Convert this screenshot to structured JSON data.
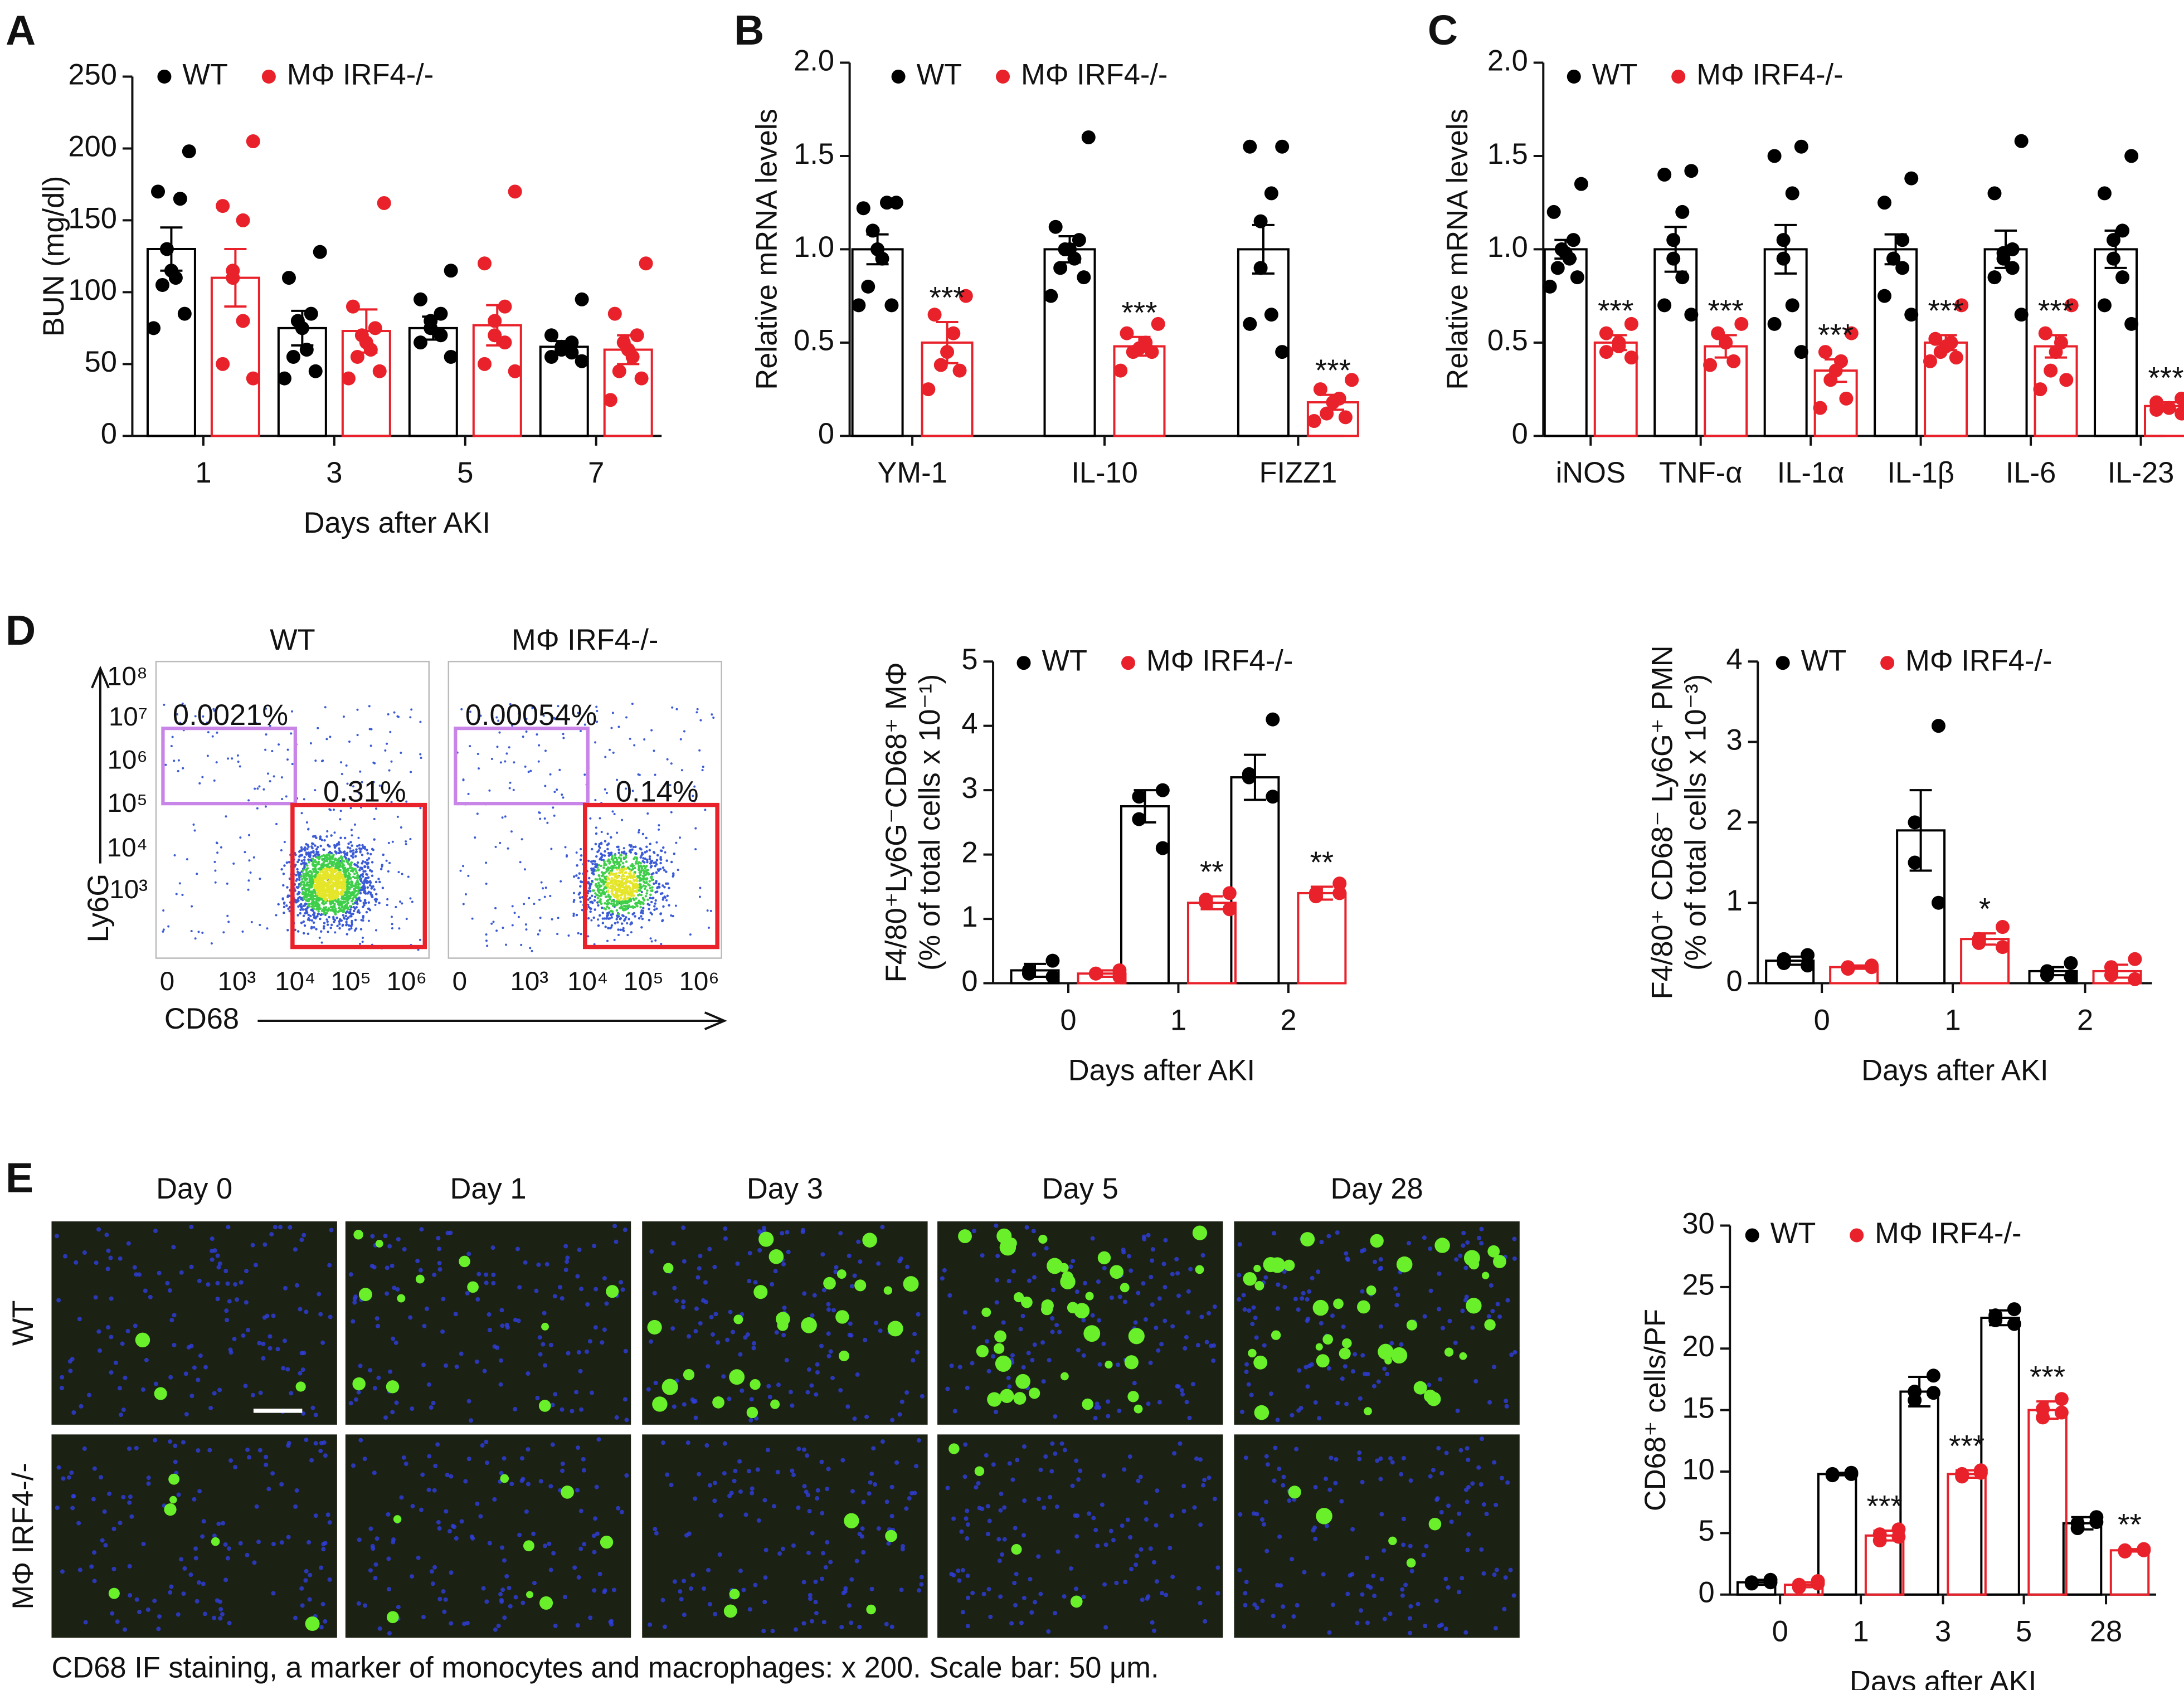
{
  "panels": [
    "A",
    "B",
    "C",
    "D",
    "E"
  ],
  "chart_data": [
    {
      "type": "bar",
      "ylabel": "BUN (mg/dl)",
      "xlabel": "Days after AKI",
      "categories": [
        "1",
        "3",
        "5",
        "7"
      ],
      "ylim": [
        0,
        250
      ],
      "yticks": [
        0,
        50,
        100,
        150,
        200,
        250
      ],
      "series": [
        {
          "name": "WT",
          "color": "#000000",
          "values": [
            130,
            75,
            75,
            62
          ],
          "errors": [
            15,
            12,
            8,
            4
          ],
          "points": [
            [
              198,
              170,
              165,
              130,
              115,
              110,
              105,
              85,
              75
            ],
            [
              128,
              110,
              85,
              80,
              75,
              60,
              55,
              45,
              40
            ],
            [
              115,
              95,
              85,
              80,
              75,
              70,
              65,
              55
            ],
            [
              95,
              70,
              65,
              62,
              60,
              58,
              55,
              52
            ]
          ],
          "annotations": [
            null,
            null,
            null,
            null
          ]
        },
        {
          "name": "MΦ IRF4-/-",
          "color": "#e8212a",
          "values": [
            110,
            73,
            77,
            60
          ],
          "errors": [
            20,
            15,
            14,
            10
          ],
          "points": [
            [
              205,
              160,
              150,
              115,
              110,
              80,
              50,
              40
            ],
            [
              162,
              90,
              75,
              70,
              65,
              60,
              55,
              45,
              40
            ],
            [
              170,
              120,
              90,
              80,
              70,
              65,
              50,
              45
            ],
            [
              120,
              85,
              70,
              65,
              60,
              55,
              45,
              40,
              25
            ]
          ],
          "annotations": [
            null,
            null,
            null,
            null
          ]
        }
      ]
    },
    {
      "type": "bar",
      "ylabel": "Relative mRNA levels",
      "categories": [
        "YM-1",
        "IL-10",
        "FIZZ1"
      ],
      "ylim": [
        0,
        2
      ],
      "yticks": [
        0,
        0.5,
        {
          "value": 1,
          "label": "1.0"
        },
        1.5,
        {
          "value": 2,
          "label": "2.0"
        }
      ],
      "series": [
        {
          "name": "WT",
          "color": "#000000",
          "values": [
            1.0,
            1.0,
            1.0
          ],
          "errors": [
            0.08,
            0.07,
            0.13
          ],
          "points": [
            [
              1.25,
              1.22,
              1.25,
              1.1,
              1.0,
              0.95,
              0.8,
              0.7,
              0.7
            ],
            [
              1.6,
              1.12,
              1.05,
              1.0,
              1.0,
              0.95,
              0.9,
              0.85,
              0.75
            ],
            [
              1.55,
              1.55,
              1.3,
              1.15,
              0.9,
              0.65,
              0.6,
              0.45
            ]
          ],
          "annotations": [
            null,
            null,
            null
          ]
        },
        {
          "name": "MΦ IRF4-/-",
          "color": "#e8212a",
          "values": [
            0.5,
            0.48,
            0.18
          ],
          "errors": [
            0.11,
            0.05,
            0.04
          ],
          "points": [
            [
              0.75,
              0.65,
              0.55,
              0.45,
              0.38,
              0.35,
              0.25
            ],
            [
              0.6,
              0.55,
              0.5,
              0.47,
              0.45,
              0.45,
              0.35
            ],
            [
              0.3,
              0.25,
              0.2,
              0.18,
              0.12,
              0.1,
              0.08
            ]
          ],
          "annotations": [
            "***",
            "***",
            "***"
          ]
        }
      ]
    },
    {
      "type": "bar",
      "ylabel": "Relative mRNA levels",
      "categories": [
        "iNOS",
        "TNF-α",
        "IL-1α",
        "IL-1β",
        "IL-6",
        "IL-23"
      ],
      "ylim": [
        0,
        2
      ],
      "yticks": [
        0,
        0.5,
        {
          "value": 1,
          "label": "1.0"
        },
        1.5,
        {
          "value": 2,
          "label": "2.0"
        }
      ],
      "series": [
        {
          "name": "WT",
          "color": "#000000",
          "values": [
            1.0,
            1.0,
            1.0,
            1.0,
            1.0,
            1.0
          ],
          "errors": [
            0.05,
            0.12,
            0.13,
            0.08,
            0.1,
            0.1
          ],
          "points": [
            [
              1.35,
              1.2,
              1.05,
              1.0,
              0.98,
              0.95,
              0.9,
              0.85,
              0.8
            ],
            [
              1.42,
              1.4,
              1.2,
              1.05,
              0.95,
              0.85,
              0.7,
              0.65
            ],
            [
              1.55,
              1.5,
              1.3,
              1.05,
              0.95,
              0.7,
              0.6,
              0.45
            ],
            [
              1.38,
              1.25,
              1.05,
              0.95,
              0.95,
              0.9,
              0.75,
              0.65
            ],
            [
              1.58,
              1.3,
              1.0,
              0.98,
              0.95,
              0.9,
              0.85,
              0.65
            ],
            [
              1.5,
              1.3,
              1.1,
              1.05,
              0.95,
              0.85,
              0.7,
              0.6
            ]
          ],
          "annotations": [
            null,
            null,
            null,
            null,
            null,
            null
          ]
        },
        {
          "name": "MΦ IRF4-/-",
          "color": "#e8212a",
          "values": [
            0.5,
            0.48,
            0.35,
            0.5,
            0.48,
            0.16
          ],
          "errors": [
            0.04,
            0.06,
            0.06,
            0.04,
            0.06,
            0.02
          ],
          "points": [
            [
              0.6,
              0.55,
              0.5,
              0.48,
              0.45,
              0.42
            ],
            [
              0.6,
              0.55,
              0.5,
              0.4,
              0.38
            ],
            [
              0.55,
              0.45,
              0.4,
              0.35,
              0.3,
              0.2,
              0.15
            ],
            [
              0.7,
              0.52,
              0.5,
              0.48,
              0.45,
              0.42,
              0.4
            ],
            [
              0.7,
              0.55,
              0.5,
              0.45,
              0.35,
              0.3,
              0.25
            ],
            [
              0.2,
              0.18,
              0.15,
              0.15,
              0.14,
              0.12
            ]
          ],
          "annotations": [
            "***",
            "***",
            "***",
            "***",
            "***",
            "***"
          ]
        }
      ]
    },
    {
      "type": "bar",
      "ylabel": [
        "F4/80⁺Ly6G⁻CD68⁺ MΦ",
        "(% of total cells x 10⁻¹)"
      ],
      "xlabel": "Days after AKI",
      "categories": [
        "0",
        "1",
        "2"
      ],
      "ylim": [
        0,
        5
      ],
      "yticks": [
        0,
        1,
        2,
        3,
        4,
        5
      ],
      "series": [
        {
          "name": "WT",
          "color": "#000000",
          "values": [
            0.2,
            2.75,
            3.2
          ],
          "errors": [
            0.1,
            0.25,
            0.35
          ],
          "points": [
            [
              0.35,
              0.2,
              0.15,
              0.1
            ],
            [
              3.0,
              2.9,
              2.55,
              2.1
            ],
            [
              4.1,
              3.25,
              3.2,
              2.9
            ]
          ],
          "annotations": [
            null,
            null,
            null
          ]
        },
        {
          "name": "MΦ IRF4-/-",
          "color": "#e8212a",
          "values": [
            0.15,
            1.25,
            1.4
          ],
          "errors": [
            0.05,
            0.1,
            0.1
          ],
          "points": [
            [
              0.2,
              0.15,
              0.15,
              0.1
            ],
            [
              1.4,
              1.3,
              1.25,
              1.15
            ],
            [
              1.55,
              1.4,
              1.35,
              1.4
            ]
          ],
          "annotations": [
            null,
            "**",
            "**"
          ]
        }
      ]
    },
    {
      "type": "bar",
      "ylabel": [
        "F4/80⁺ CD68⁻ Ly6G⁺ PMN",
        "(% of total cells x 10⁻³)"
      ],
      "xlabel": "Days after AKI",
      "categories": [
        "0",
        "1",
        "2"
      ],
      "ylim": [
        0,
        4
      ],
      "yticks": [
        0,
        1,
        2,
        3,
        4
      ],
      "series": [
        {
          "name": "WT",
          "color": "#000000",
          "values": [
            0.28,
            1.9,
            0.15
          ],
          "errors": [
            0.05,
            0.5,
            0.05
          ],
          "points": [
            [
              0.35,
              0.3,
              0.25,
              0.22
            ],
            [
              3.2,
              2.0,
              1.5,
              1.0
            ],
            [
              0.25,
              0.15,
              0.1,
              0.08
            ]
          ],
          "annotations": [
            null,
            null,
            null
          ]
        },
        {
          "name": "MΦ IRF4-/-",
          "color": "#e8212a",
          "values": [
            0.2,
            0.55,
            0.15
          ],
          "errors": [
            0.02,
            0.07,
            0.08
          ],
          "points": [
            [
              0.22,
              0.2,
              0.18,
              0.2
            ],
            [
              0.7,
              0.55,
              0.5,
              0.45
            ],
            [
              0.3,
              0.2,
              0.1,
              0.05
            ]
          ],
          "annotations": [
            null,
            "*",
            null
          ]
        }
      ]
    },
    {
      "type": "bar",
      "ylabel": "CD68⁺ cells/PF",
      "xlabel": "Days after AKI",
      "categories": [
        "0",
        "1",
        "3",
        "5",
        "28"
      ],
      "ylim": [
        0,
        30
      ],
      "yticks": [
        0,
        5,
        10,
        15,
        20,
        25,
        30
      ],
      "series": [
        {
          "name": "WT",
          "color": "#000000",
          "values": [
            1.0,
            9.8,
            16.5,
            22.5,
            5.8
          ],
          "errors": [
            0.2,
            0.1,
            1.2,
            0.6,
            0.5
          ],
          "points": [
            [
              1.2,
              1.0,
              0.9,
              1.0
            ],
            [
              9.9,
              9.8,
              9.7,
              9.8
            ],
            [
              17.8,
              16.5,
              15.8,
              16.4
            ],
            [
              23.2,
              22.7,
              22.3,
              22.0
            ],
            [
              6.3,
              5.8,
              5.4,
              5.9
            ]
          ],
          "annotations": [
            null,
            null,
            null,
            null,
            null
          ]
        },
        {
          "name": "MΦ IRF4-/-",
          "color": "#e8212a",
          "values": [
            0.8,
            4.8,
            9.8,
            15,
            3.6
          ],
          "errors": [
            0.2,
            0.4,
            0.3,
            0.7,
            0.1
          ],
          "points": [
            [
              1.1,
              0.8,
              0.6,
              0.9
            ],
            [
              5.3,
              4.9,
              4.4,
              4.7
            ],
            [
              10.1,
              9.8,
              9.6,
              9.9
            ],
            [
              15.9,
              15.1,
              14.4,
              14.8
            ],
            [
              3.7,
              3.6,
              3.5,
              3.6
            ]
          ],
          "annotations": [
            null,
            "***",
            "***",
            "***",
            "**"
          ]
        }
      ]
    }
  ],
  "flow": {
    "plots": [
      {
        "title": "WT",
        "gate_ly6g": "0.0021%",
        "gate_cd68": "0.31%"
      },
      {
        "title": "MΦ IRF4-/-",
        "gate_ly6g": "0.00054%",
        "gate_cd68": "0.14%"
      }
    ],
    "y_label": "Ly6G",
    "x_label": "CD68",
    "y_ticks": [
      "10⁸",
      "10⁷",
      "10⁶",
      "10⁵",
      "10⁴",
      "10³"
    ],
    "x_ticks": [
      "0",
      "10³",
      "10⁴",
      "10⁵",
      "10⁶"
    ]
  },
  "micrograph": {
    "columns": [
      "Day 0",
      "Day 1",
      "Day 3",
      "Day 5",
      "Day 28"
    ],
    "rows": [
      "WT",
      "MΦ IRF4-/-"
    ],
    "caption": "CD68 IF staining, a marker of monocytes and macrophages: x 200. Scale bar: 50 μm."
  }
}
